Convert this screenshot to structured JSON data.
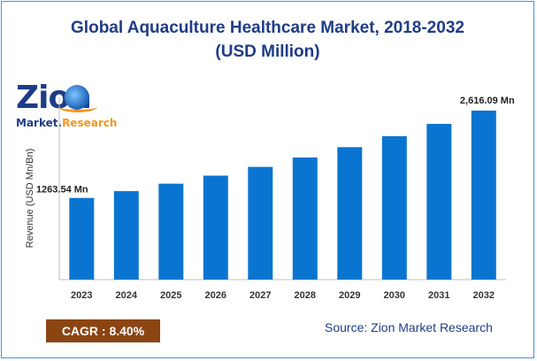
{
  "title_line1": "Global Aquaculture Healthcare Market, 2018-2032",
  "title_line2": "(USD Million)",
  "logo": {
    "name": "Zion",
    "market": "Market.",
    "research": "Research"
  },
  "cagr_label": "CAGR : 8.40%",
  "source_text": "Source: Zion Market Research",
  "colors": {
    "bar": "#0a75d1",
    "title": "#1f3c88",
    "cagr_bg": "#8b4513"
  },
  "chart_data": {
    "type": "bar",
    "title": "Global Aquaculture Healthcare Market, 2018-2032 (USD Million)",
    "xlabel": "",
    "ylabel": "Revenue (USD Mn/Bn)",
    "categories": [
      "2023",
      "2024",
      "2025",
      "2026",
      "2027",
      "2028",
      "2029",
      "2030",
      "2031",
      "2032"
    ],
    "values": [
      1263.54,
      1370,
      1485,
      1610,
      1745,
      1890,
      2050,
      2220,
      2410,
      2616.09
    ],
    "data_labels": {
      "2023": "1263.54 Mn",
      "2032": "2,616.09 Mn"
    },
    "ylim": [
      0,
      2616.09
    ],
    "grid": false,
    "legend": "none"
  }
}
